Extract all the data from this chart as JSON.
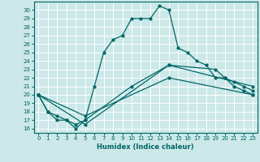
{
  "title": "",
  "xlabel": "Humidex (Indice chaleur)",
  "bg_color": "#cce8e8",
  "grid_color": "#ffffff",
  "line_color": "#006666",
  "xlim": [
    -0.5,
    23.5
  ],
  "ylim": [
    15.5,
    31.0
  ],
  "xticks": [
    0,
    1,
    2,
    3,
    4,
    5,
    6,
    7,
    8,
    9,
    10,
    11,
    12,
    13,
    14,
    15,
    16,
    17,
    18,
    19,
    20,
    21,
    22,
    23
  ],
  "yticks": [
    16,
    17,
    18,
    19,
    20,
    21,
    22,
    23,
    24,
    25,
    26,
    27,
    28,
    29,
    30
  ],
  "curve1_x": [
    0,
    1,
    2,
    3,
    4,
    5,
    6,
    7,
    8,
    9,
    10,
    11,
    12,
    13,
    14,
    15,
    16,
    17,
    18,
    19,
    20,
    21,
    22,
    23
  ],
  "curve1_y": [
    20,
    18,
    17,
    17,
    16,
    17,
    21,
    25,
    26.5,
    27,
    29,
    29,
    29,
    30.5,
    30,
    25.5,
    25,
    24,
    23.5,
    22,
    22,
    21,
    20.5,
    20
  ],
  "curve2_x": [
    0,
    1,
    2,
    3,
    4,
    5,
    10,
    14,
    19,
    20,
    21,
    22,
    23
  ],
  "curve2_y": [
    20,
    18,
    17.5,
    17,
    16.5,
    17,
    21,
    23.5,
    23,
    22,
    21.5,
    21,
    20.5
  ],
  "curve3_x": [
    0,
    5,
    14,
    23
  ],
  "curve3_y": [
    20,
    16.5,
    23.5,
    21
  ],
  "curve4_x": [
    0,
    5,
    14,
    23
  ],
  "curve4_y": [
    20,
    17.5,
    22,
    20
  ]
}
